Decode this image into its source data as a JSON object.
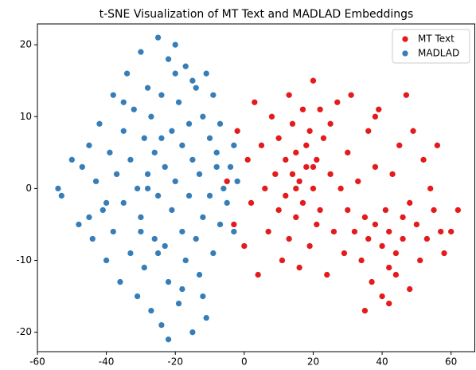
{
  "chart_data": {
    "type": "scatter",
    "title": "t-SNE Visualization of MT Text and MADLAD Embeddings",
    "xlim": [
      -60,
      67
    ],
    "ylim": [
      -22.7,
      22.9
    ],
    "xticks": [
      -60,
      -40,
      -20,
      0,
      20,
      40,
      60
    ],
    "yticks": [
      -20,
      -10,
      0,
      10,
      20
    ],
    "legend": "upper right",
    "grid": false,
    "series": [
      {
        "name": "MT Text",
        "color": "#e41a1c",
        "x": [
          -5,
          -3,
          -2,
          0,
          1,
          2,
          3,
          4,
          5,
          6,
          7,
          8,
          9,
          10,
          10,
          11,
          12,
          12,
          13,
          13,
          14,
          14,
          15,
          15,
          16,
          16,
          17,
          17,
          18,
          18,
          19,
          19,
          20,
          20,
          21,
          21,
          22,
          22,
          23,
          24,
          25,
          25,
          26,
          27,
          28,
          29,
          30,
          30,
          31,
          32,
          33,
          34,
          35,
          36,
          36,
          37,
          38,
          38,
          39,
          40,
          40,
          41,
          42,
          42,
          43,
          44,
          44,
          45,
          46,
          46,
          47,
          48,
          48,
          49,
          50,
          51,
          52,
          53,
          54,
          55,
          56,
          57,
          58,
          60,
          62,
          35,
          38,
          42,
          15,
          20
        ],
        "values": [
          1,
          -5,
          8,
          -8,
          4,
          -2,
          12,
          -12,
          6,
          0,
          -6,
          10,
          2,
          -3,
          7,
          -10,
          4,
          -1,
          13,
          -7,
          2,
          9,
          -4,
          5,
          -11,
          1,
          11,
          -2,
          6,
          3,
          -8,
          8,
          0,
          15,
          -5,
          4,
          11,
          -3,
          7,
          -12,
          2,
          9,
          -6,
          12,
          0,
          -9,
          5,
          -3,
          13,
          -6,
          1,
          -10,
          -4,
          8,
          -7,
          -13,
          3,
          -5,
          11,
          -8,
          -15,
          -3,
          -6,
          -16,
          2,
          -9,
          -12,
          6,
          -4,
          -7,
          13,
          -14,
          -2,
          8,
          -5,
          -10,
          4,
          -7,
          0,
          -3,
          6,
          -6,
          -9,
          -6,
          -3,
          -17,
          10,
          -11,
          0,
          3
        ]
      },
      {
        "name": "MADLAD",
        "color": "#377eb8",
        "x": [
          -54,
          -53,
          -50,
          -48,
          -47,
          -45,
          -44,
          -43,
          -42,
          -41,
          -40,
          -39,
          -38,
          -38,
          -37,
          -36,
          -35,
          -35,
          -34,
          -33,
          -33,
          -32,
          -31,
          -31,
          -30,
          -30,
          -29,
          -29,
          -28,
          -28,
          -27,
          -27,
          -26,
          -26,
          -25,
          -25,
          -24,
          -24,
          -23,
          -23,
          -22,
          -22,
          -21,
          -21,
          -20,
          -20,
          -19,
          -19,
          -18,
          -18,
          -17,
          -17,
          -16,
          -16,
          -15,
          -15,
          -14,
          -14,
          -13,
          -13,
          -12,
          -12,
          -11,
          -11,
          -10,
          -10,
          -9,
          -9,
          -8,
          -8,
          -7,
          -7,
          -6,
          -5,
          -4,
          -3,
          -3,
          -2,
          -25,
          -22,
          -20,
          -18,
          -30,
          -35,
          -40,
          -45,
          -28,
          -15,
          -12,
          -24
        ],
        "values": [
          0,
          -1,
          4,
          -5,
          3,
          6,
          -7,
          1,
          9,
          -3,
          -10,
          5,
          13,
          -6,
          2,
          -13,
          8,
          -2,
          16,
          -9,
          4,
          11,
          -15,
          0,
          19,
          -4,
          7,
          -11,
          14,
          2,
          -17,
          10,
          -7,
          5,
          21,
          -1,
          -19,
          13,
          3,
          -8,
          18,
          -13,
          8,
          -3,
          20,
          1,
          -16,
          12,
          -6,
          6,
          17,
          -10,
          -1,
          9,
          -20,
          4,
          14,
          -7,
          2,
          -12,
          10,
          -4,
          16,
          -18,
          7,
          -1,
          13,
          -9,
          3,
          5,
          -5,
          9,
          0,
          -2,
          3,
          -6,
          6,
          1,
          -9,
          -21,
          16,
          -14,
          -6,
          12,
          -2,
          -4,
          0,
          15,
          -15,
          7
        ]
      }
    ]
  }
}
